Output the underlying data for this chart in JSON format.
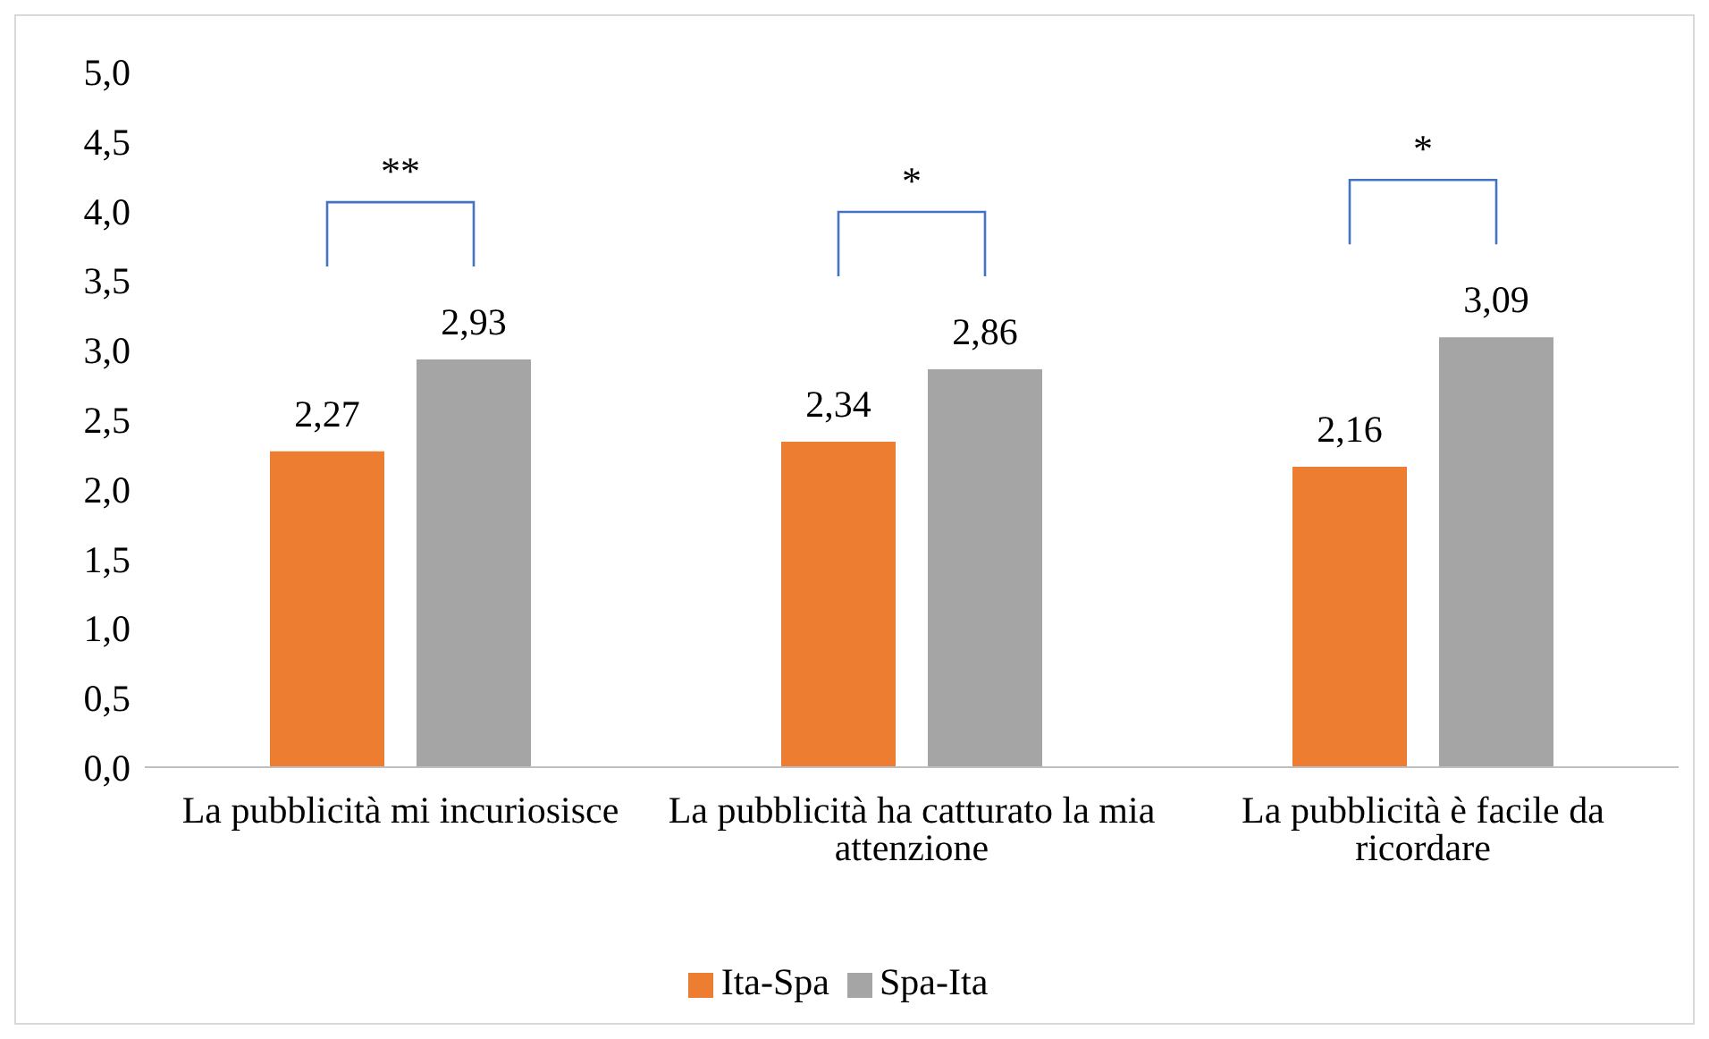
{
  "chart_data": {
    "type": "bar",
    "categories": [
      "La pubblicità mi incuriosisce",
      "La pubblicità ha catturato la mia attenzione",
      "La pubblicità è facile da ricordare"
    ],
    "series": [
      {
        "name": "Ita-Spa",
        "color": "#ed7d31",
        "values": [
          2.27,
          2.34,
          2.16
        ],
        "value_labels": [
          "2,27",
          "2,34",
          "2,16"
        ]
      },
      {
        "name": "Spa-Ita",
        "color": "#a5a5a5",
        "values": [
          2.93,
          2.86,
          3.09
        ],
        "value_labels": [
          "2,93",
          "2,86",
          "3,09"
        ]
      }
    ],
    "ylim": [
      0,
      5
    ],
    "yticks": [
      {
        "value": 0,
        "label": "0,0"
      },
      {
        "value": 0.5,
        "label": "0,5"
      },
      {
        "value": 1,
        "label": "1,0"
      },
      {
        "value": 1.5,
        "label": "1,5"
      },
      {
        "value": 2,
        "label": "2,0"
      },
      {
        "value": 2.5,
        "label": "2,5"
      },
      {
        "value": 3,
        "label": "3,0"
      },
      {
        "value": 3.5,
        "label": "3,5"
      },
      {
        "value": 4,
        "label": "4,0"
      },
      {
        "value": 4.5,
        "label": "4,5"
      },
      {
        "value": 5,
        "label": "5,0"
      }
    ],
    "grid": false,
    "legend": "bottom",
    "annotations": [
      "**",
      "*",
      "*"
    ]
  }
}
